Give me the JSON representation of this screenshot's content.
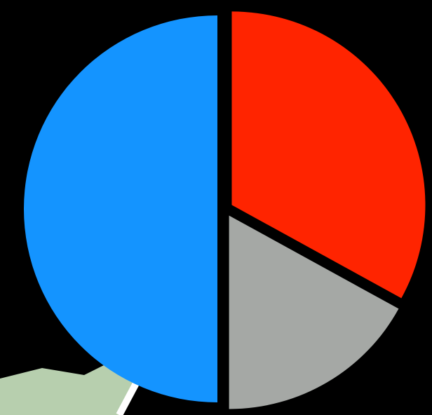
{
  "chart_data": {
    "type": "pie",
    "values": [
      33,
      17,
      50
    ],
    "colors": [
      "#ff2400",
      "#a5a8a5",
      "#1494ff"
    ],
    "start_angle": 0,
    "explode": true
  }
}
